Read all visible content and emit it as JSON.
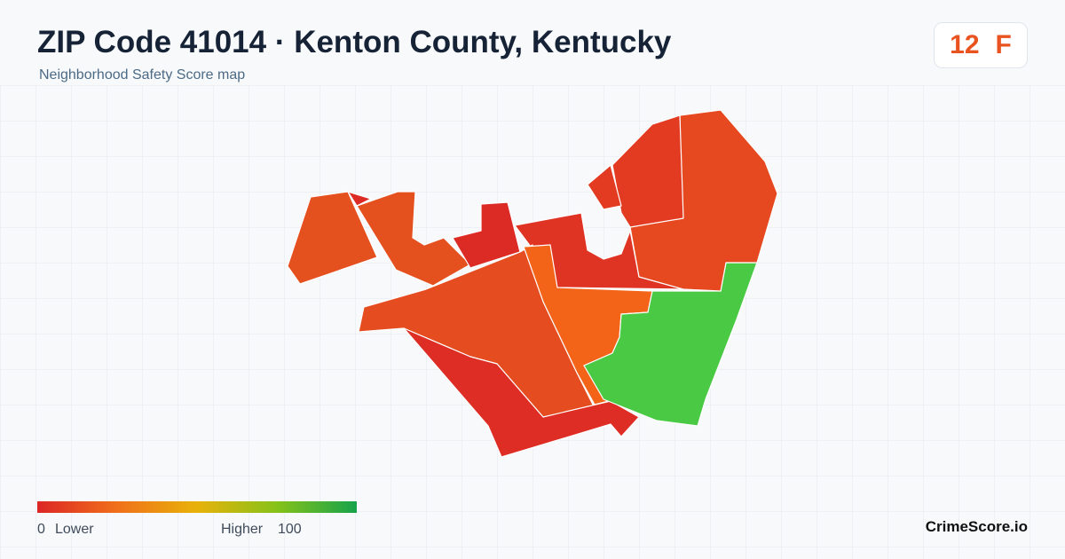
{
  "header": {
    "title": "ZIP Code 41014 · Kenton County, Kentucky",
    "subtitle": "Neighborhood Safety Score map"
  },
  "badge": {
    "score": 12,
    "grade": "F"
  },
  "legend": {
    "min": 0,
    "low_label": "Lower",
    "high_label": "Higher",
    "max": 100
  },
  "footer": {
    "brand": "CrimeScore.io"
  }
}
